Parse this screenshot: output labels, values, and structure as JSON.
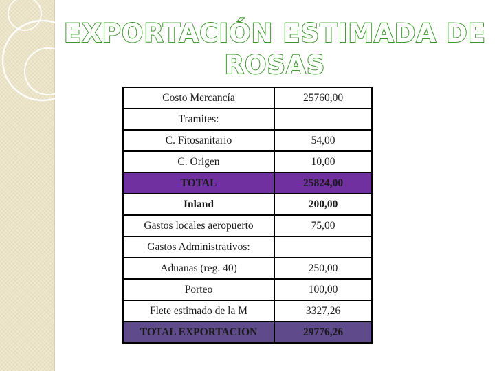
{
  "title": {
    "line1": "EXPORTACIÓN ESTIMADA DE",
    "line2": "ROSAS"
  },
  "colors": {
    "title_outline": "#3c9a2c",
    "total_row": "#7030a0",
    "final_row": "#5f4b8b",
    "side_panel": "#efe8cf"
  },
  "table": {
    "rows": [
      {
        "label": "Costo Mercancía",
        "value": "25760,00",
        "style": "normal"
      },
      {
        "label": "Tramites:",
        "value": "",
        "style": "normal"
      },
      {
        "label": "C. Fitosanitario",
        "value": "54,00",
        "style": "normal"
      },
      {
        "label": "C. Origen",
        "value": "10,00",
        "style": "normal"
      },
      {
        "label": "TOTAL",
        "value": "25824,00",
        "style": "total"
      },
      {
        "label": "Inland",
        "value": "200,00",
        "style": "bold"
      },
      {
        "label": "Gastos locales aeropuerto",
        "value": "75,00",
        "style": "normal"
      },
      {
        "label": "Gastos Administrativos:",
        "value": "",
        "style": "normal"
      },
      {
        "label": "Aduanas (reg. 40)",
        "value": "250,00",
        "style": "normal"
      },
      {
        "label": "Porteo",
        "value": "100,00",
        "style": "normal"
      },
      {
        "label": "Flete estimado de la M",
        "value": "3327,26",
        "style": "normal"
      },
      {
        "label": "TOTAL EXPORTACION",
        "value": "29776,26",
        "style": "final"
      }
    ]
  }
}
